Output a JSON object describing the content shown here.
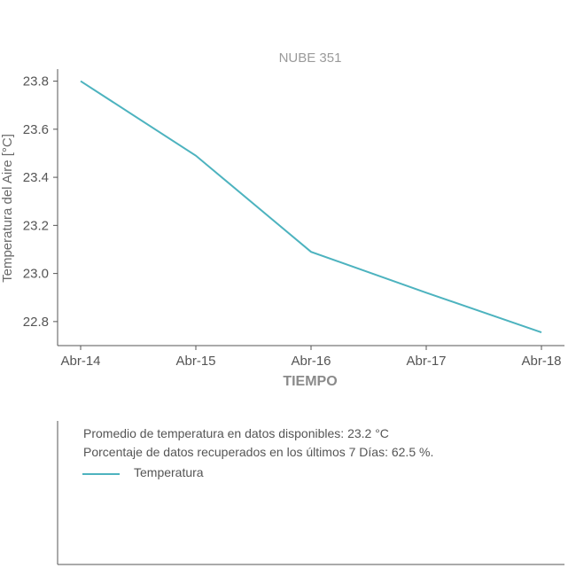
{
  "chart_data": {
    "type": "line",
    "title": "NUBE 351",
    "xlabel": "TIEMPO",
    "ylabel": "Temperatura del Aire [°C]",
    "categories": [
      "Abr-14",
      "Abr-15",
      "Abr-16",
      "Abr-17",
      "Abr-18"
    ],
    "series": [
      {
        "name": "Temperatura",
        "values": [
          23.8,
          23.49,
          23.09,
          22.92,
          22.755
        ],
        "color": "#4db3bf"
      }
    ],
    "yticks": [
      "22.8",
      "23.0",
      "23.2",
      "23.4",
      "23.6",
      "23.8"
    ],
    "ylim": [
      22.7,
      23.85
    ],
    "grid": false
  },
  "info": {
    "average_line": "Promedio de temperatura en datos disponibles: 23.2 °C",
    "percentage_line": "Porcentaje de datos recuperados en los últimos 7 Días: 62.5 %.",
    "legend_label": "Temperatura"
  },
  "colors": {
    "axis": "#555555",
    "line": "#4db3bf"
  }
}
